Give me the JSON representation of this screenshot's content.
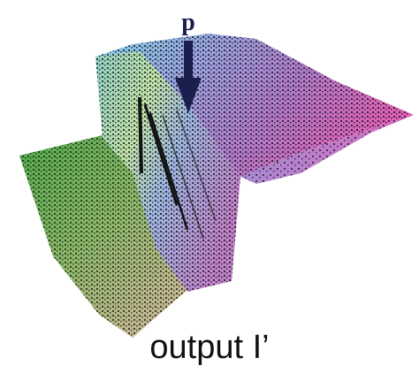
{
  "figure": {
    "point_label": "p",
    "caption": "output I’",
    "colors": {
      "arrow": "#1a1f4e",
      "dot": "#111111",
      "green": "#56a64a",
      "yellow": "#c8c06a",
      "cyan": "#7ec8d8",
      "blue": "#8aa0dc",
      "violet": "#a070c0",
      "magenta": "#d060b0"
    }
  }
}
